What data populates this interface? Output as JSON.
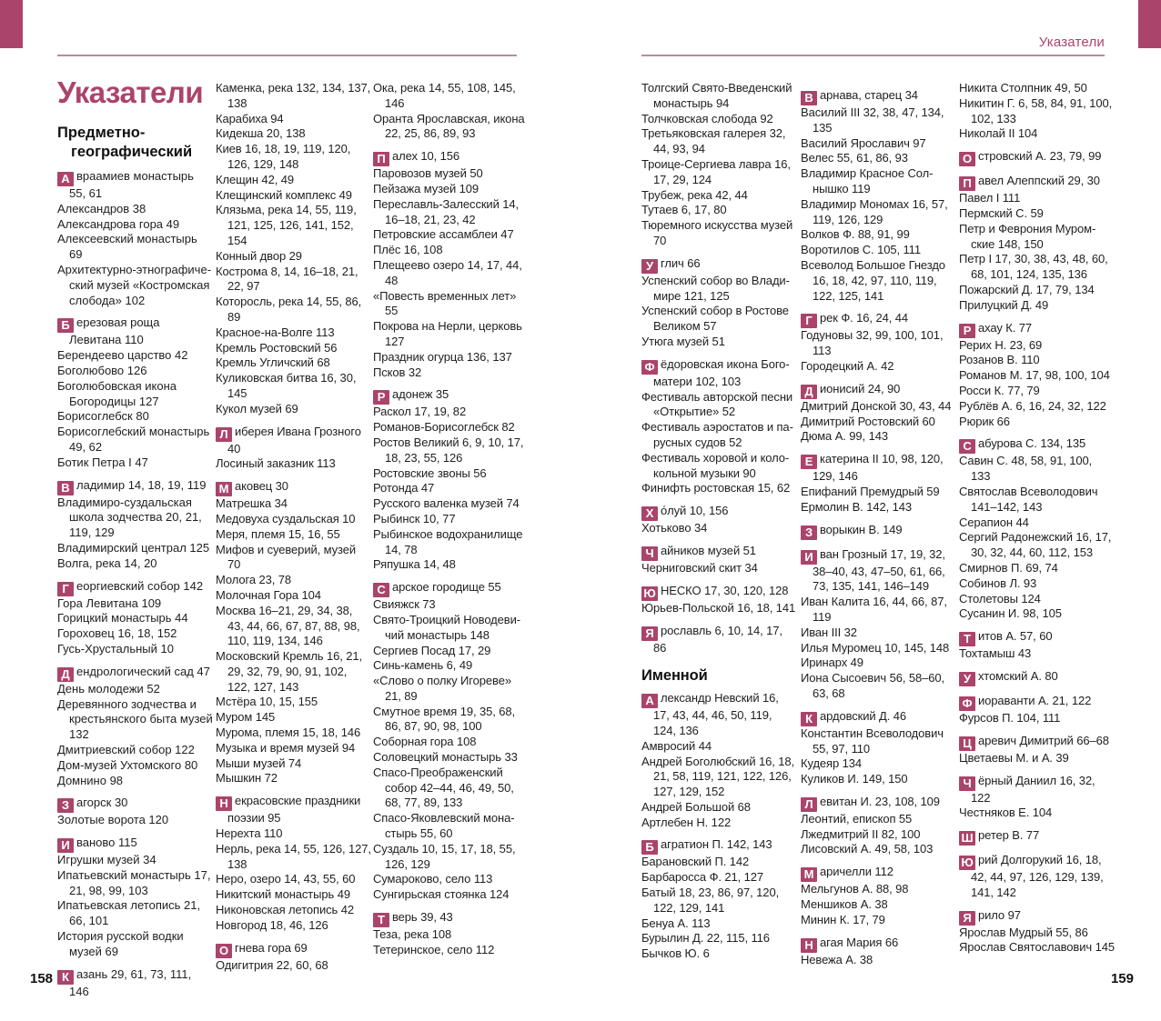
{
  "page": {
    "running_header": "Указатели",
    "title": "Указатели",
    "left_page_number": "158",
    "right_page_number": "159"
  },
  "headings": {
    "subject_geo": "Предметно-географический"
  },
  "colors": {
    "accent": "#ab446b",
    "rule": "#b98ba1",
    "text": "#1f1f1f"
  },
  "columns": [
    [
      {
        "l": "А",
        "t": "враамиев монастырь 55, 61"
      },
      {
        "t": "Александров 38"
      },
      {
        "t": "Александрова гора 49"
      },
      {
        "t": "Алексеевский монастырь 69"
      },
      {
        "t": "Архитектурно-этнографиче­ский музей «Костромская слобода» 102"
      },
      {
        "l": "Б",
        "t": "ерезовая роща Левитана 110"
      },
      {
        "t": "Берендеево царство 42"
      },
      {
        "t": "Боголюбово 126"
      },
      {
        "t": "Боголюбовская икона Богородицы 127"
      },
      {
        "t": "Борисоглебск 80"
      },
      {
        "t": "Борисоглебский монастырь 49, 62"
      },
      {
        "t": "Ботик Петра I 47"
      },
      {
        "l": "В",
        "t": "ладимир 14, 18, 19, 119"
      },
      {
        "t": "Владимиро-суздальская школа зодчества 20, 21, 119, 129"
      },
      {
        "t": "Владимирский централ 125"
      },
      {
        "t": "Волга, река 14, 20"
      },
      {
        "l": "Г",
        "t": "еоргиевский собор 142"
      },
      {
        "t": "Гора Левитана 109"
      },
      {
        "t": "Горицкий монастырь 44"
      },
      {
        "t": "Гороховец 16, 18, 152"
      },
      {
        "t": "Гусь-Хрустальный 10"
      },
      {
        "l": "Д",
        "t": "ендрологический сад 47"
      },
      {
        "t": "День молодежи 52"
      },
      {
        "t": "Деревянного зодчества и крестьянского быта музей 132"
      },
      {
        "t": "Дмитриевский собор 122"
      },
      {
        "t": "Дом-музей Ухтомского 80"
      },
      {
        "t": "Домнино 98"
      },
      {
        "l": "З",
        "t": "агорск 30"
      },
      {
        "t": "Золотые ворота 120"
      },
      {
        "l": "И",
        "t": "ваново 115"
      },
      {
        "t": "Игрушки музей 34"
      },
      {
        "t": "Ипатьевский монастырь 17, 21, 98, 99, 103"
      },
      {
        "t": "Ипатьевская летопись 21, 66, 101"
      },
      {
        "t": "История русской водки музей 69"
      },
      {
        "l": "К",
        "t": "азань 29, 61, 73, 111, 146"
      }
    ],
    [
      {
        "t": "Каменка, река 132, 134, 137, 138"
      },
      {
        "t": "Карабиха 94"
      },
      {
        "t": "Кидекша 20, 138"
      },
      {
        "t": "Киев 16, 18, 19, 119, 120, 126, 129, 148"
      },
      {
        "t": "Клещин 42, 49"
      },
      {
        "t": "Клещинский комплекс 49"
      },
      {
        "t": "Клязьма, река 14, 55, 119, 121, 125, 126, 141, 152, 154"
      },
      {
        "t": "Конный двор 29"
      },
      {
        "t": "Кострома 8, 14, 16–18, 21, 22, 97"
      },
      {
        "t": "Которосль, река 14, 55, 86, 89"
      },
      {
        "t": "Красное-на-Волге 113"
      },
      {
        "t": "Кремль Ростовский 56"
      },
      {
        "t": "Кремль Угличский 68"
      },
      {
        "t": "Куликовская битва 16, 30, 145"
      },
      {
        "t": "Кукол музей 69"
      },
      {
        "l": "Л",
        "t": "иберея Ивана Грозного 40"
      },
      {
        "t": "Лосиный заказник 113"
      },
      {
        "l": "М",
        "t": "аковец 30"
      },
      {
        "t": "Матрешка 34"
      },
      {
        "t": "Медовуха суздальская 10"
      },
      {
        "t": "Меря, племя 15, 16, 55"
      },
      {
        "t": "Мифов и суеверий, музей 70"
      },
      {
        "t": "Молога 23, 78"
      },
      {
        "t": "Молочная Гора 104"
      },
      {
        "t": "Москва 16–21, 29, 34, 38, 43, 44, 66, 67, 87, 88, 98, 110, 119, 134, 146"
      },
      {
        "t": "Московский Кремль 16, 21, 29, 32, 79, 90, 91, 102, 122, 127, 143"
      },
      {
        "t": "Мстёра 10, 15, 155"
      },
      {
        "t": "Муром 145"
      },
      {
        "t": "Мурома, племя 15, 18, 146"
      },
      {
        "t": "Музыка и время музей 94"
      },
      {
        "t": "Мыши музей 74"
      },
      {
        "t": "Мышкин 72"
      },
      {
        "l": "Н",
        "t": "екрасовские праздники поэзии 95"
      },
      {
        "t": "Нерехта 110"
      },
      {
        "t": "Нерль, река 14, 55, 126, 127, 138"
      },
      {
        "t": "Неро, озеро 14, 43, 55, 60"
      },
      {
        "t": "Никитский монастырь 49"
      },
      {
        "t": "Никоновская летопись 42"
      },
      {
        "t": "Новгород 18, 46, 126"
      },
      {
        "l": "О",
        "t": "гнева гора 69"
      },
      {
        "t": "Одигитрия 22, 60, 68"
      }
    ],
    [
      {
        "t": "Ока, река 14, 55, 108, 145, 146"
      },
      {
        "t": "Оранта Ярославская, икона 22, 25, 86, 89, 93"
      },
      {
        "l": "П",
        "t": "алех 10, 156"
      },
      {
        "t": "Паровозов музей 50"
      },
      {
        "t": "Пейзажа музей 109"
      },
      {
        "t": "Переславль-Залесский 14, 16–18, 21, 23, 42"
      },
      {
        "t": "Петровские ассамблеи 47"
      },
      {
        "t": "Плёс 16, 108"
      },
      {
        "t": "Плещеево озеро 14, 17, 44, 48"
      },
      {
        "t": "«Повесть временных лет» 55"
      },
      {
        "t": "Покрова на Нерли, церковь 127"
      },
      {
        "t": "Праздник огурца 136, 137"
      },
      {
        "t": "Псков 32"
      },
      {
        "l": "Р",
        "t": "адонеж 35"
      },
      {
        "t": "Раскол 17, 19, 82"
      },
      {
        "t": "Романов-Борисоглебск 82"
      },
      {
        "t": "Ростов Великий 6, 9, 10, 17, 18, 23, 55, 126"
      },
      {
        "t": "Ростовские звоны 56"
      },
      {
        "t": "Ротонда 47"
      },
      {
        "t": "Русского валенка музей 74"
      },
      {
        "t": "Рыбинск 10, 77"
      },
      {
        "t": "Рыбинское водохранилище 14, 78"
      },
      {
        "t": "Ряпушка 14, 48"
      },
      {
        "l": "С",
        "t": "арское городище 55"
      },
      {
        "t": "Свияжск 73"
      },
      {
        "t": "Свято-Троицкий Новодеви­чий монастырь 148"
      },
      {
        "t": "Сергиев Посад 17, 29"
      },
      {
        "t": "Синь-камень 6, 49"
      },
      {
        "t": "«Слово о полку Игореве» 21, 89"
      },
      {
        "t": "Смутное время 19, 35, 68, 86, 87, 90, 98, 100"
      },
      {
        "t": "Соборная гора 108"
      },
      {
        "t": "Соловецкий монастырь 33"
      },
      {
        "t": "Спасо-Преображенский собор 42–44, 46, 49, 50, 68, 77, 89, 133"
      },
      {
        "t": "Спасо-Яковлевский мона­стырь 55, 60"
      },
      {
        "t": "Суздаль 10, 15, 17, 18, 55, 126, 129"
      },
      {
        "t": "Сумароково, село 113"
      },
      {
        "t": "Сунгирьская стоянка 124"
      },
      {
        "l": "Т",
        "t": "верь 39, 43"
      },
      {
        "t": "Теза, река 108"
      },
      {
        "t": "Тетеринское, село 112"
      }
    ],
    [
      {
        "t": "Толгский Свято-Введенский монастырь 94"
      },
      {
        "t": "Толчковская слобода 92"
      },
      {
        "t": "Третьяковская галерея 32, 44, 93, 94"
      },
      {
        "t": "Троице-Сергиева лавра 16, 17, 29, 124"
      },
      {
        "t": "Трубеж, река 42, 44"
      },
      {
        "t": "Тутаев 6, 17, 80"
      },
      {
        "t": "Тюремного искусства музей 70"
      },
      {
        "l": "У",
        "t": "глич 66"
      },
      {
        "t": "Успенский собор во Влади­мире 121, 125"
      },
      {
        "t": "Успенский собор в Ростове Великом 57"
      },
      {
        "t": "Утюга музей 51"
      },
      {
        "l": "Ф",
        "t": "ёдоровская икона Бого­матери 102, 103"
      },
      {
        "t": "Фестиваль авторской песни «Открытие» 52"
      },
      {
        "t": "Фестиваль аэростатов и па­русных судов 52"
      },
      {
        "t": "Фестиваль хоровой и коло­кольной музыки 90"
      },
      {
        "t": "Финифть ростовская 15, 62"
      },
      {
        "l": "Х",
        "t": "о́луй 10, 156"
      },
      {
        "t": "Хотьково 34"
      },
      {
        "l": "Ч",
        "t": "айников музей 51"
      },
      {
        "t": "Черниговский скит 34"
      },
      {
        "l": "Ю",
        "t": "НЕСКО 17, 30, 120, 128"
      },
      {
        "t": "Юрьев-Польской 16, 18, 141"
      },
      {
        "l": "Я",
        "t": "рославль 6, 10, 14, 17, 86"
      },
      {
        "h": "Именной"
      },
      {
        "l": "А",
        "t": "лександр Невский 16, 17, 43, 44, 46, 50, 119, 124, 136"
      },
      {
        "t": "Амвросий 44"
      },
      {
        "t": "Андрей Боголюбский 16, 18, 21, 58, 119, 121, 122, 126, 127, 129, 152"
      },
      {
        "t": "Андрей Большой 68"
      },
      {
        "t": "Артлебен Н. 122"
      },
      {
        "l": "Б",
        "t": "агратион П. 142, 143"
      },
      {
        "t": "Барановский П. 142"
      },
      {
        "t": "Барбаросса Ф. 21, 127"
      },
      {
        "t": "Батый 18, 23, 86, 97, 120, 122, 129, 141"
      },
      {
        "t": "Бенуа А. 113"
      },
      {
        "t": "Бурылин Д. 22, 115, 116"
      },
      {
        "t": "Бычков Ю. 6"
      }
    ],
    [
      {
        "l": "В",
        "t": "арнава, старец 34"
      },
      {
        "t": "Василий III 32, 38, 47, 134, 135"
      },
      {
        "t": "Василий Ярославич 97"
      },
      {
        "t": "Велес 55, 61, 86, 93"
      },
      {
        "t": "Владимир Красное Сол­нышко 119"
      },
      {
        "t": "Владимир Мономах 16, 57, 119, 126, 129"
      },
      {
        "t": "Волков Ф. 88, 91, 99"
      },
      {
        "t": "Воротилов С. 105, 111"
      },
      {
        "t": "Всеволод Большое Гнездо 16, 18, 42, 97, 110, 119, 122, 125, 141"
      },
      {
        "l": "Г",
        "t": "рек Ф. 16, 24, 44"
      },
      {
        "t": "Годуновы 32, 99, 100, 101, 113"
      },
      {
        "t": "Городецкий А. 42"
      },
      {
        "l": "Д",
        "t": "ионисий 24, 90"
      },
      {
        "t": "Дмитрий Донской 30, 43, 44"
      },
      {
        "t": "Димитрий Ростовский 60"
      },
      {
        "t": "Дюма А. 99, 143"
      },
      {
        "l": "Е",
        "t": "катерина II 10, 98, 120, 129, 146"
      },
      {
        "t": "Епифаний Премудрый 59"
      },
      {
        "t": "Ермолин В. 142, 143"
      },
      {
        "l": "З",
        "t": "ворыкин В. 149"
      },
      {
        "l": "И",
        "t": "ван Грозный 17, 19, 32, 38–40, 43, 47–50, 61, 66, 73, 135, 141, 146–149"
      },
      {
        "t": "Иван Калита 16, 44, 66, 87, 119"
      },
      {
        "t": "Иван III 32"
      },
      {
        "t": "Илья Муромец 10, 145, 148"
      },
      {
        "t": "Иринарх 49"
      },
      {
        "t": "Иона Сысоевич 56, 58–60, 63, 68"
      },
      {
        "l": "К",
        "t": "ардовский Д. 46"
      },
      {
        "t": "Константин Всеволодович 55, 97, 110"
      },
      {
        "t": "Кудеяр 134"
      },
      {
        "t": "Куликов И. 149, 150"
      },
      {
        "l": "Л",
        "t": "евитан И. 23, 108, 109"
      },
      {
        "t": "Леонтий, епископ 55"
      },
      {
        "t": "Лжедмитрий II 82, 100"
      },
      {
        "t": "Лисовский А. 49, 58, 103"
      },
      {
        "l": "М",
        "t": "аричелли 112"
      },
      {
        "t": "Мельгунов А. 88, 98"
      },
      {
        "t": "Меншиков А. 38"
      },
      {
        "t": "Минин К. 17, 79"
      },
      {
        "l": "Н",
        "t": "агая Мария 66"
      },
      {
        "t": "Невежа А. 38"
      }
    ],
    [
      {
        "t": "Никита Столпник 49, 50"
      },
      {
        "t": "Никитин Г. 6, 58, 84, 91, 100, 102, 133"
      },
      {
        "t": "Николай II 104"
      },
      {
        "l": "О",
        "t": "стровский А. 23, 79, 99"
      },
      {
        "l": "П",
        "t": "авел Алеппский 29, 30"
      },
      {
        "t": "Павел I 111"
      },
      {
        "t": "Пермский С. 59"
      },
      {
        "t": "Петр и Феврония Муром­ские 148, 150"
      },
      {
        "t": "Петр I 17, 30, 38, 43, 48, 60, 68, 101, 124, 135, 136"
      },
      {
        "t": "Пожарский Д. 17, 79, 134"
      },
      {
        "t": "Прилуцкий Д. 49"
      },
      {
        "l": "Р",
        "t": "ахау К. 77"
      },
      {
        "t": "Рерих Н. 23, 69"
      },
      {
        "t": "Розанов В. 110"
      },
      {
        "t": "Романов М. 17, 98, 100, 104"
      },
      {
        "t": "Росси К. 77, 79"
      },
      {
        "t": "Рублёв А. 6, 16, 24, 32, 122"
      },
      {
        "t": "Рюрик 66"
      },
      {
        "l": "С",
        "t": "абурова С. 134, 135"
      },
      {
        "t": "Савин С. 48, 58, 91, 100, 133"
      },
      {
        "t": "Святослав Всеволодович 141–142, 143"
      },
      {
        "t": "Серапион 44"
      },
      {
        "t": "Сергий Радонежский 16, 17, 30, 32, 44, 60, 112, 153"
      },
      {
        "t": "Смирнов П. 69, 74"
      },
      {
        "t": "Собинов Л. 93"
      },
      {
        "t": "Столетовы 124"
      },
      {
        "t": "Сусанин И. 98, 105"
      },
      {
        "l": "Т",
        "t": "итов А. 57, 60"
      },
      {
        "t": "Тохтамыш 43"
      },
      {
        "l": "У",
        "t": "хтомский А. 80"
      },
      {
        "l": "Ф",
        "t": "иораванти А. 21, 122"
      },
      {
        "t": "Фурсов П. 104, 111"
      },
      {
        "l": "Ц",
        "t": "аревич Димитрий 66–68"
      },
      {
        "t": "Цветаевы М. и А. 39"
      },
      {
        "l": "Ч",
        "t": "ёрный Даниил 16, 32, 122"
      },
      {
        "t": "Честняков Е. 104"
      },
      {
        "l": "Ш",
        "t": "ретер В. 77"
      },
      {
        "l": "Ю",
        "t": "рий Долгорукий 16, 18, 42, 44, 97, 126, 129, 139, 141, 142"
      },
      {
        "l": "Я",
        "t": "рило 97"
      },
      {
        "t": "Ярослав Мудрый 55, 86"
      },
      {
        "t": "Ярослав Святославович 145"
      }
    ]
  ]
}
